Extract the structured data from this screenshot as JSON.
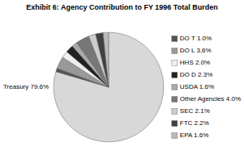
{
  "chart_data": {
    "type": "pie",
    "title": "Exhibit 6: Agency Contribution to FY 1996 Total Burden",
    "categories": [
      "Treasury 79.6%",
      "DO T 1.0%",
      "DO L 3.6%",
      "HHS 2.0%",
      "DO D 2.3%",
      "USDA 1.6%",
      "Other Agencies 4.0%",
      "SEC 2.1%",
      "FTC 2.2%",
      "EPA 1.6%"
    ],
    "values": [
      79.6,
      1.0,
      3.6,
      2.0,
      2.3,
      1.6,
      4.0,
      2.1,
      2.2,
      1.6
    ],
    "colors": [
      "#d8d8d8",
      "#555555",
      "#999999",
      "#eeeeee",
      "#222222",
      "#aaaaaa",
      "#777777",
      "#cccccc",
      "#404040",
      "#bbbbbb"
    ]
  }
}
